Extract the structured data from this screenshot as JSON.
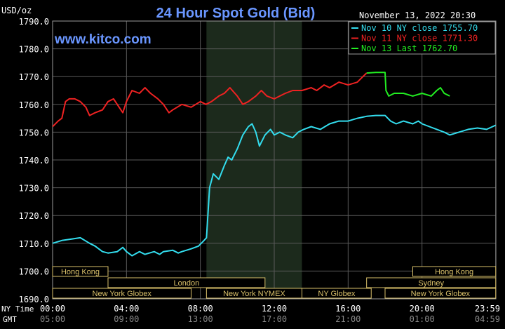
{
  "header": {
    "unit": "USD/oz",
    "title": "24 Hour Spot Gold (Bid)",
    "timestamp": "November 13, 2022 20:30",
    "site": "www.kitco.com"
  },
  "legend": [
    {
      "label": "Nov 10 NY close 1755.70",
      "color": "#33ddee"
    },
    {
      "label": "Nov 11 NY close 1771.30",
      "color": "#ee2222"
    },
    {
      "label": "Nov 13 Last 1762.70",
      "color": "#22ee22"
    }
  ],
  "axes": {
    "x_label_top": "NY Time",
    "x_label_bottom": "GMT",
    "x_ticks_ny": [
      "00:00",
      "04:00",
      "08:00",
      "12:00",
      "16:00",
      "20:00",
      "23:59"
    ],
    "x_ticks_gmt": [
      "05:00",
      "09:00",
      "13:00",
      "17:00",
      "21:00",
      "01:00",
      "04:59"
    ]
  },
  "sessions": [
    {
      "label": "Hong Kong",
      "row": 0,
      "start": 0.0,
      "end": 3.0
    },
    {
      "label": "Hong Kong",
      "row": 0,
      "start": 19.5,
      "end": 23.99
    },
    {
      "label": "London",
      "row": 1,
      "start": 3.0,
      "end": 11.5
    },
    {
      "label": "Sydney",
      "row": 1,
      "start": 17.0,
      "end": 23.99
    },
    {
      "label": "New York Globex",
      "row": 2,
      "start": 0.0,
      "end": 7.5
    },
    {
      "label": "New York NYMEX",
      "row": 2,
      "start": 8.33,
      "end": 13.5
    },
    {
      "label": "NY Globex",
      "row": 2,
      "start": 13.5,
      "end": 17.25
    },
    {
      "label": "New York Globex",
      "row": 2,
      "start": 18.0,
      "end": 23.99
    }
  ],
  "chart_data": {
    "type": "line",
    "title": "24 Hour Spot Gold (Bid)",
    "ylabel": "USD/oz",
    "xlabel": "NY Time",
    "xlim": [
      0,
      24
    ],
    "ylim": [
      1690,
      1790
    ],
    "y_ticks": [
      1690,
      1700,
      1710,
      1720,
      1730,
      1740,
      1750,
      1760,
      1770,
      1780,
      1790
    ],
    "grid": true,
    "legend_position": "top-right",
    "shaded_hours": [
      8.33,
      13.5
    ],
    "series": [
      {
        "name": "Nov 10 NY close 1755.70",
        "color": "#33ddee",
        "points": [
          [
            0,
            1710
          ],
          [
            0.5,
            1711
          ],
          [
            1,
            1711.5
          ],
          [
            1.5,
            1712
          ],
          [
            2,
            1710
          ],
          [
            2.3,
            1709
          ],
          [
            2.7,
            1707
          ],
          [
            3,
            1706.5
          ],
          [
            3.5,
            1707
          ],
          [
            3.8,
            1708.5
          ],
          [
            4,
            1707
          ],
          [
            4.3,
            1705.5
          ],
          [
            4.7,
            1707
          ],
          [
            5,
            1706
          ],
          [
            5.5,
            1707
          ],
          [
            5.8,
            1706
          ],
          [
            6,
            1707
          ],
          [
            6.5,
            1707.5
          ],
          [
            6.8,
            1706.5
          ],
          [
            7,
            1707
          ],
          [
            7.5,
            1708
          ],
          [
            7.9,
            1709
          ],
          [
            8.2,
            1711
          ],
          [
            8.33,
            1712
          ],
          [
            8.5,
            1730
          ],
          [
            8.7,
            1735
          ],
          [
            9,
            1733
          ],
          [
            9.3,
            1738
          ],
          [
            9.5,
            1741
          ],
          [
            9.7,
            1740
          ],
          [
            10,
            1744
          ],
          [
            10.3,
            1749
          ],
          [
            10.6,
            1752
          ],
          [
            10.8,
            1753
          ],
          [
            11,
            1750
          ],
          [
            11.2,
            1745
          ],
          [
            11.5,
            1749
          ],
          [
            11.8,
            1751
          ],
          [
            12,
            1749
          ],
          [
            12.3,
            1750
          ],
          [
            12.6,
            1749
          ],
          [
            13,
            1748
          ],
          [
            13.3,
            1750
          ],
          [
            13.6,
            1751
          ],
          [
            14,
            1752
          ],
          [
            14.5,
            1751
          ],
          [
            15,
            1753
          ],
          [
            15.5,
            1754
          ],
          [
            16,
            1754
          ],
          [
            16.5,
            1755
          ],
          [
            17,
            1755.7
          ],
          [
            17.5,
            1756
          ],
          [
            18,
            1756
          ],
          [
            18.3,
            1754
          ],
          [
            18.6,
            1753
          ],
          [
            19,
            1754
          ],
          [
            19.5,
            1753
          ],
          [
            19.8,
            1754
          ],
          [
            20,
            1753
          ],
          [
            20.4,
            1752
          ],
          [
            20.8,
            1751
          ],
          [
            21.2,
            1750
          ],
          [
            21.5,
            1749
          ],
          [
            22,
            1750
          ],
          [
            22.5,
            1751
          ],
          [
            23,
            1751.5
          ],
          [
            23.5,
            1751
          ],
          [
            23.99,
            1752.5
          ]
        ]
      },
      {
        "name": "Nov 11 NY close 1771.30",
        "color": "#ee2222",
        "points": [
          [
            0,
            1752
          ],
          [
            0.3,
            1754
          ],
          [
            0.5,
            1755
          ],
          [
            0.7,
            1761
          ],
          [
            0.9,
            1762
          ],
          [
            1.2,
            1762
          ],
          [
            1.5,
            1761
          ],
          [
            1.8,
            1759
          ],
          [
            2,
            1756
          ],
          [
            2.3,
            1757
          ],
          [
            2.7,
            1758
          ],
          [
            3,
            1761
          ],
          [
            3.3,
            1762
          ],
          [
            3.6,
            1759
          ],
          [
            3.8,
            1757
          ],
          [
            4,
            1761
          ],
          [
            4.3,
            1765
          ],
          [
            4.7,
            1764
          ],
          [
            5,
            1766
          ],
          [
            5.3,
            1764
          ],
          [
            5.7,
            1762
          ],
          [
            6,
            1760
          ],
          [
            6.3,
            1757
          ],
          [
            6.5,
            1758
          ],
          [
            7,
            1760
          ],
          [
            7.5,
            1759
          ],
          [
            8,
            1761
          ],
          [
            8.3,
            1760
          ],
          [
            8.6,
            1761
          ],
          [
            9,
            1763
          ],
          [
            9.3,
            1764
          ],
          [
            9.6,
            1766
          ],
          [
            10,
            1763
          ],
          [
            10.3,
            1760
          ],
          [
            10.6,
            1761
          ],
          [
            11,
            1763
          ],
          [
            11.3,
            1765
          ],
          [
            11.6,
            1763
          ],
          [
            12,
            1762
          ],
          [
            12.3,
            1763
          ],
          [
            12.6,
            1764
          ],
          [
            13,
            1765
          ],
          [
            13.5,
            1765
          ],
          [
            14,
            1766
          ],
          [
            14.3,
            1765
          ],
          [
            14.7,
            1767
          ],
          [
            15,
            1766
          ],
          [
            15.5,
            1768
          ],
          [
            16,
            1767
          ],
          [
            16.5,
            1768
          ],
          [
            16.8,
            1770
          ],
          [
            17,
            1771.3
          ]
        ]
      },
      {
        "name": "Nov 13 Last 1762.70",
        "color": "#22ee22",
        "points": [
          [
            17,
            1771.3
          ],
          [
            17.5,
            1771.5
          ],
          [
            18,
            1771.5
          ],
          [
            18.05,
            1765
          ],
          [
            18.2,
            1763
          ],
          [
            18.5,
            1764
          ],
          [
            19,
            1764
          ],
          [
            19.5,
            1763
          ],
          [
            20,
            1764
          ],
          [
            20.5,
            1763
          ],
          [
            20.8,
            1765
          ],
          [
            21,
            1766
          ],
          [
            21.2,
            1764
          ],
          [
            21.5,
            1763
          ]
        ]
      }
    ]
  }
}
